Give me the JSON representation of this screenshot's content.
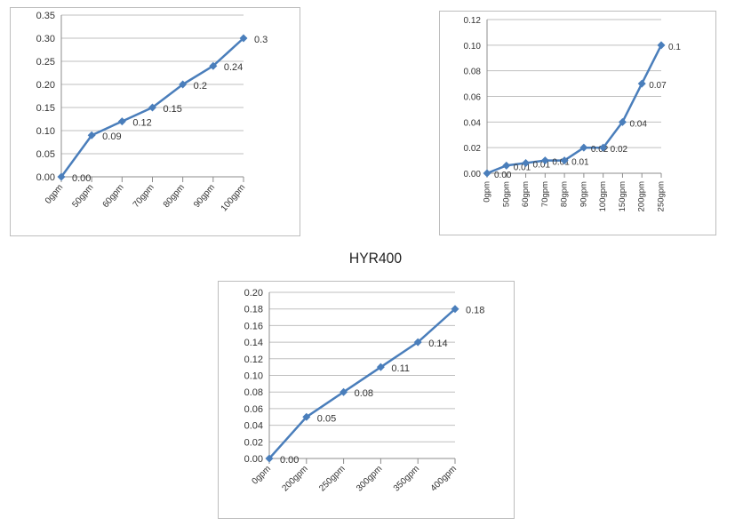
{
  "caption": "HYR400",
  "colors": {
    "series": "#4A7EBB",
    "grid": "#bfbfbf",
    "axis": "#8c8c8c"
  },
  "chart_data": [
    {
      "type": "line",
      "title": "",
      "categories": [
        "0gpm",
        "50gpm",
        "60gpm",
        "70gpm",
        "80gpm",
        "90gpm",
        "100gpm"
      ],
      "values": [
        0.0,
        0.09,
        0.12,
        0.15,
        0.2,
        0.24,
        0.3
      ],
      "data_labels": [
        "0.00",
        "0.09",
        "0.12",
        "0.15",
        "0.2",
        "0.24",
        "0.3"
      ],
      "yticks": [
        "0.00",
        "0.05",
        "0.10",
        "0.15",
        "0.20",
        "0.25",
        "0.30",
        "0.35"
      ],
      "ylim": [
        0,
        0.35
      ],
      "grid": true,
      "legend": "none"
    },
    {
      "type": "line",
      "title": "",
      "categories": [
        "0gpm",
        "50gpm",
        "60gpm",
        "70gpm",
        "80gpm",
        "90gpm",
        "100gpm",
        "150gpm",
        "200gpm",
        "250gpm"
      ],
      "values": [
        0.0,
        0.006,
        0.008,
        0.01,
        0.01,
        0.02,
        0.02,
        0.04,
        0.07,
        0.1
      ],
      "data_labels": [
        "0.00",
        "0.01",
        "0.01",
        "0.01",
        "0.01",
        "0.02",
        "0.02",
        "0.04",
        "0.07",
        "0.1"
      ],
      "yticks": [
        "0.00",
        "0.02",
        "0.04",
        "0.06",
        "0.08",
        "0.10",
        "0.12"
      ],
      "ylim": [
        0,
        0.12
      ],
      "grid": true,
      "legend": "none"
    },
    {
      "type": "line",
      "title": "",
      "categories": [
        "0gpm",
        "200gpm",
        "250gpm",
        "300gpm",
        "350gpm",
        "400gpm"
      ],
      "values": [
        0.0,
        0.05,
        0.08,
        0.11,
        0.14,
        0.18
      ],
      "data_labels": [
        "0.00",
        "0.05",
        "0.08",
        "0.11",
        "0.14",
        "0.18"
      ],
      "yticks": [
        "0.00",
        "0.02",
        "0.04",
        "0.06",
        "0.08",
        "0.10",
        "0.12",
        "0.14",
        "0.16",
        "0.18",
        "0.20"
      ],
      "ylim": [
        0,
        0.2
      ],
      "grid": true,
      "legend": "none"
    }
  ]
}
